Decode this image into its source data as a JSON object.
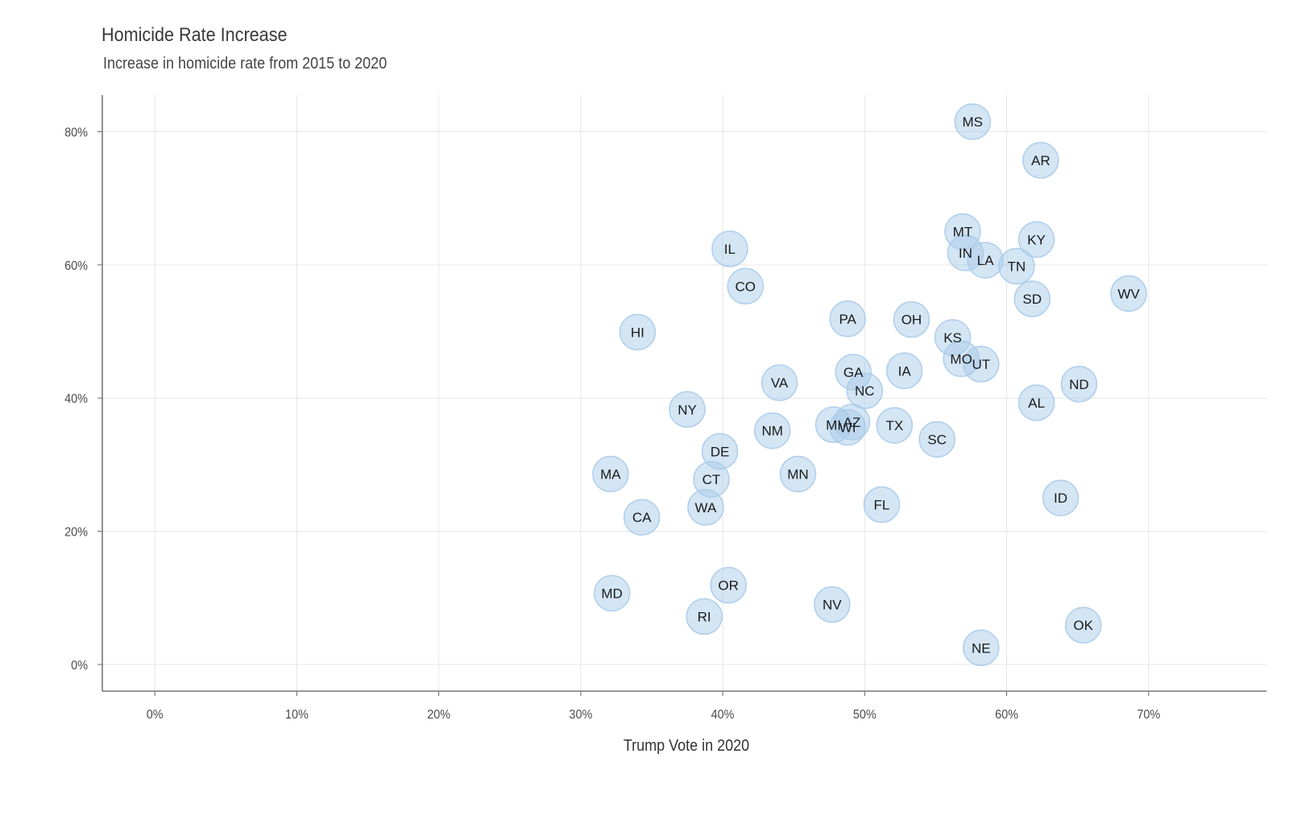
{
  "chart_data": {
    "type": "scatter",
    "title": "Homicide Rate Increase",
    "subtitle": "Increase in homicide rate from 2015 to 2020",
    "xlabel": "Trump Vote in 2020",
    "ylabel": "",
    "xlim": [
      -0.037,
      0.783
    ],
    "ylim": [
      -0.04,
      0.855
    ],
    "x_ticks": [
      0,
      0.1,
      0.2,
      0.3,
      0.4,
      0.5,
      0.6,
      0.7
    ],
    "x_tick_labels": [
      "0%",
      "10%",
      "20%",
      "30%",
      "40%",
      "50%",
      "60%",
      "70%"
    ],
    "y_ticks": [
      0,
      0.2,
      0.4,
      0.6,
      0.8
    ],
    "y_tick_labels": [
      "0%",
      "20%",
      "40%",
      "60%",
      "80%"
    ],
    "grid": true,
    "point_color": "#a9cbea",
    "points": [
      {
        "label": "MS",
        "x": 0.576,
        "y": 0.815
      },
      {
        "label": "AR",
        "x": 0.624,
        "y": 0.757
      },
      {
        "label": "MT",
        "x": 0.569,
        "y": 0.65
      },
      {
        "label": "KY",
        "x": 0.621,
        "y": 0.638
      },
      {
        "label": "IL",
        "x": 0.405,
        "y": 0.624
      },
      {
        "label": "IN",
        "x": 0.571,
        "y": 0.618
      },
      {
        "label": "LA",
        "x": 0.585,
        "y": 0.607
      },
      {
        "label": "TN",
        "x": 0.607,
        "y": 0.598
      },
      {
        "label": "CO",
        "x": 0.416,
        "y": 0.568
      },
      {
        "label": "WV",
        "x": 0.686,
        "y": 0.557
      },
      {
        "label": "SD",
        "x": 0.618,
        "y": 0.549
      },
      {
        "label": "PA",
        "x": 0.488,
        "y": 0.519
      },
      {
        "label": "OH",
        "x": 0.533,
        "y": 0.518
      },
      {
        "label": "HI",
        "x": 0.34,
        "y": 0.499
      },
      {
        "label": "KS",
        "x": 0.562,
        "y": 0.491
      },
      {
        "label": "MO",
        "x": 0.568,
        "y": 0.459
      },
      {
        "label": "UT",
        "x": 0.582,
        "y": 0.451
      },
      {
        "label": "IA",
        "x": 0.528,
        "y": 0.441
      },
      {
        "label": "GA",
        "x": 0.492,
        "y": 0.439
      },
      {
        "label": "VA",
        "x": 0.44,
        "y": 0.423
      },
      {
        "label": "ND",
        "x": 0.651,
        "y": 0.421
      },
      {
        "label": "NC",
        "x": 0.5,
        "y": 0.411
      },
      {
        "label": "AL",
        "x": 0.621,
        "y": 0.393
      },
      {
        "label": "NY",
        "x": 0.375,
        "y": 0.383
      },
      {
        "label": "MI",
        "x": 0.478,
        "y": 0.36
      },
      {
        "label": "AZ",
        "x": 0.491,
        "y": 0.364
      },
      {
        "label": "WI",
        "x": 0.488,
        "y": 0.356
      },
      {
        "label": "TX",
        "x": 0.521,
        "y": 0.359
      },
      {
        "label": "NM",
        "x": 0.435,
        "y": 0.351
      },
      {
        "label": "SC",
        "x": 0.551,
        "y": 0.338
      },
      {
        "label": "DE",
        "x": 0.398,
        "y": 0.32
      },
      {
        "label": "MA",
        "x": 0.321,
        "y": 0.286
      },
      {
        "label": "MN",
        "x": 0.453,
        "y": 0.286
      },
      {
        "label": "CT",
        "x": 0.392,
        "y": 0.278
      },
      {
        "label": "ID",
        "x": 0.638,
        "y": 0.25
      },
      {
        "label": "FL",
        "x": 0.512,
        "y": 0.24
      },
      {
        "label": "WA",
        "x": 0.388,
        "y": 0.236
      },
      {
        "label": "CA",
        "x": 0.343,
        "y": 0.221
      },
      {
        "label": "OR",
        "x": 0.404,
        "y": 0.119
      },
      {
        "label": "MD",
        "x": 0.322,
        "y": 0.107
      },
      {
        "label": "NV",
        "x": 0.477,
        "y": 0.09
      },
      {
        "label": "RI",
        "x": 0.387,
        "y": 0.072
      },
      {
        "label": "OK",
        "x": 0.654,
        "y": 0.059
      },
      {
        "label": "NE",
        "x": 0.582,
        "y": 0.025
      }
    ]
  }
}
